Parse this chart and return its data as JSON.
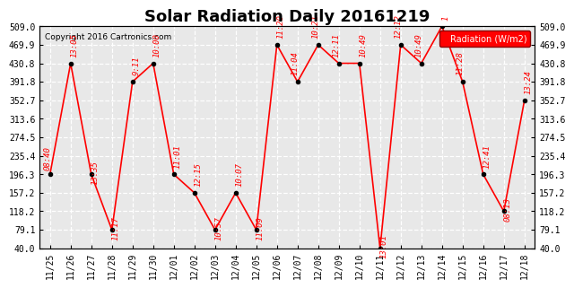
{
  "title": "Solar Radiation Daily 20161219",
  "copyright": "Copyright 2016 Cartronics.com",
  "legend_label": "Radiation (W/m2)",
  "x_labels": [
    "11/25",
    "11/26",
    "11/27",
    "11/28",
    "11/29",
    "11/30",
    "12/01",
    "12/02",
    "12/03",
    "12/04",
    "12/05",
    "12/06",
    "12/07",
    "12/08",
    "12/09",
    "12/10",
    "12/11",
    "12/12",
    "12/13",
    "12/14",
    "12/15",
    "12/16",
    "12/17",
    "12/18"
  ],
  "y_values": [
    196.3,
    430.8,
    196.3,
    79.1,
    391.8,
    430.8,
    196.3,
    157.2,
    79.1,
    157.2,
    79.1,
    469.9,
    391.8,
    469.9,
    430.8,
    430.8,
    40.0,
    469.9,
    430.8,
    509.0,
    391.8,
    196.3,
    118.2,
    352.7
  ],
  "point_labels": [
    "08:40",
    "13:05",
    "13:35",
    "11:17",
    "9:11",
    "10:00",
    "11:01",
    "12:15",
    "10:57",
    "10:07",
    "11:09",
    "11:20",
    "11:04",
    "10:21",
    "12:11",
    "10:49",
    "13:01",
    "12:12",
    "10:49",
    "1",
    "11:28",
    "12:41",
    "08:13",
    "13:24"
  ],
  "ylim": [
    40.0,
    509.0
  ],
  "yticks": [
    40.0,
    79.1,
    118.2,
    157.2,
    196.3,
    235.4,
    274.5,
    313.6,
    352.7,
    391.8,
    430.8,
    469.9,
    509.0
  ],
  "line_color": "red",
  "marker_color": "black",
  "bg_color": "#e8e8e8",
  "grid_color": "white",
  "title_fontsize": 13,
  "tick_fontsize": 7,
  "annot_fontsize": 6.5
}
